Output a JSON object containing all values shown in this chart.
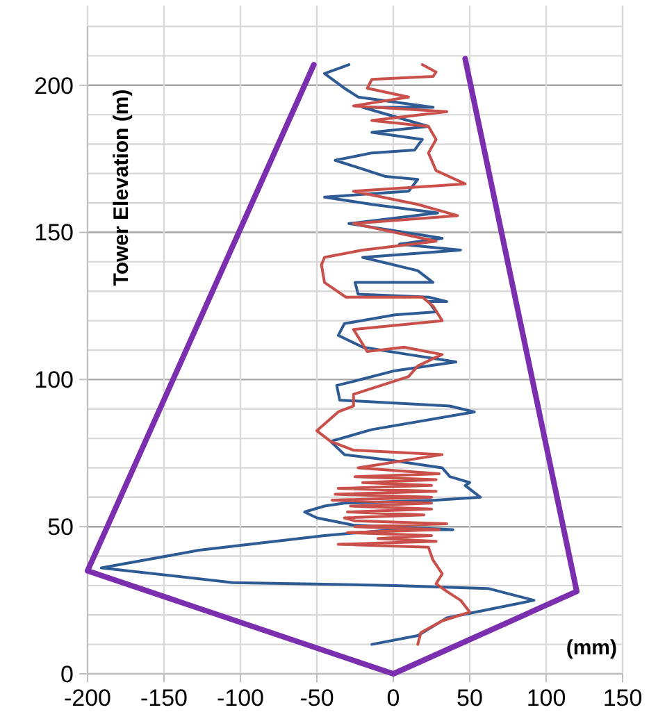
{
  "chart_data": {
    "type": "line",
    "xlabel": "(mm)",
    "ylabel": "Tower Elevation (m)",
    "xlim": [
      -200,
      150
    ],
    "xticks": [
      -200,
      -150,
      -100,
      -50,
      0,
      50,
      100,
      150
    ],
    "ylim": [
      0,
      220
    ],
    "yticks": [
      0,
      {
        "value": 10,
        "label": null
      },
      {
        "value": 20,
        "label": null
      },
      {
        "value": 30,
        "label": null
      },
      {
        "value": 40,
        "label": null
      },
      50,
      {
        "value": 60,
        "label": null
      },
      {
        "value": 70,
        "label": null
      },
      {
        "value": 80,
        "label": null
      },
      {
        "value": 90,
        "label": null
      },
      100,
      {
        "value": 110,
        "label": null
      },
      {
        "value": 120,
        "label": null
      },
      {
        "value": 130,
        "label": null
      },
      {
        "value": 140,
        "label": null
      },
      150,
      {
        "value": 160,
        "label": null
      },
      {
        "value": 170,
        "label": null
      },
      {
        "value": 180,
        "label": null
      },
      {
        "value": 190,
        "label": null
      },
      200,
      {
        "value": 210,
        "label": null
      },
      {
        "value": 220,
        "label": null
      }
    ],
    "grid": true,
    "marker": "none",
    "line_style": "solid",
    "series": [
      {
        "color": "#2e5b94",
        "x": [
          -14,
          16,
          35,
          83,
          92,
          62,
          1,
          -105,
          -191,
          -127,
          -45,
          1,
          39,
          -26,
          -50,
          -58,
          -45,
          -32,
          28,
          57,
          47,
          50,
          37,
          32,
          -2,
          -32,
          -41,
          -14,
          53,
          37,
          -35,
          -37,
          -29,
          1,
          41,
          10,
          -20,
          -36,
          -32,
          1,
          28,
          23,
          35,
          23,
          -23,
          -25,
          26,
          16,
          -20,
          44,
          4,
          32,
          -29,
          29,
          -14,
          -45,
          10,
          16,
          -5,
          -38,
          -14,
          14,
          19,
          -14,
          23,
          -20,
          26,
          -23,
          -32,
          -45,
          -29
        ],
        "values": [
          10,
          13,
          19,
          24,
          25,
          29,
          30,
          31,
          36,
          42,
          47,
          49,
          49,
          50.5,
          53,
          55,
          57,
          58,
          59,
          60,
          64,
          65,
          67,
          70,
          72.6,
          74.5,
          79,
          83,
          89,
          91,
          93,
          98,
          99,
          103,
          106,
          108.5,
          111,
          115,
          119,
          122,
          123,
          126.5,
          126.5,
          128,
          129,
          133,
          133,
          137,
          141.5,
          144,
          146,
          148,
          153,
          156.6,
          159.5,
          162,
          164,
          168,
          169,
          174.5,
          177,
          178,
          181.6,
          184,
          186,
          192.5,
          192.5,
          196,
          199,
          204,
          207
        ]
      },
      {
        "color": "#c9504a",
        "x": [
          16,
          18,
          32,
          50,
          44,
          35,
          28,
          32,
          26,
          23,
          -36,
          28,
          -10,
          25,
          -30,
          30,
          -25,
          35,
          -25,
          -32,
          20,
          -30,
          25,
          -28,
          25,
          -40,
          25,
          -38,
          28,
          -36,
          25,
          -20,
          28,
          -25,
          30,
          -23,
          32,
          -26,
          -41,
          -50,
          -36,
          -26,
          -26,
          -8,
          10,
          16,
          28,
          32,
          7,
          -17,
          -26,
          32,
          26,
          19,
          -31,
          -45,
          -47,
          -45,
          -20,
          28,
          -26,
          42,
          16,
          -26,
          47,
          28,
          23,
          28,
          23,
          -14,
          35,
          -26,
          10,
          -17,
          -14,
          26,
          28,
          19
        ],
        "values": [
          10,
          14,
          18,
          21,
          25,
          28,
          30.6,
          34,
          38.6,
          43,
          44,
          45,
          46,
          47,
          48,
          49,
          50,
          51,
          52,
          53,
          54,
          55,
          56,
          57,
          58,
          59,
          60,
          61,
          62,
          63,
          64,
          65,
          66,
          67,
          68,
          70,
          74.5,
          76,
          79,
          82.6,
          89,
          91,
          95,
          98,
          101,
          104.6,
          107.6,
          108.5,
          111,
          109.5,
          117,
          120,
          125,
          128,
          128,
          133,
          139,
          141.5,
          144,
          147,
          153,
          155.7,
          159.5,
          164,
          166.5,
          171,
          177,
          181.6,
          186,
          188,
          191,
          193,
          196,
          199,
          202,
          203,
          204.5,
          207
        ]
      },
      {
        "color": "#7b2fae",
        "x": [
          -52,
          -200,
          0,
          120,
          47
        ],
        "values": [
          207,
          35,
          0,
          28,
          209
        ]
      }
    ]
  }
}
